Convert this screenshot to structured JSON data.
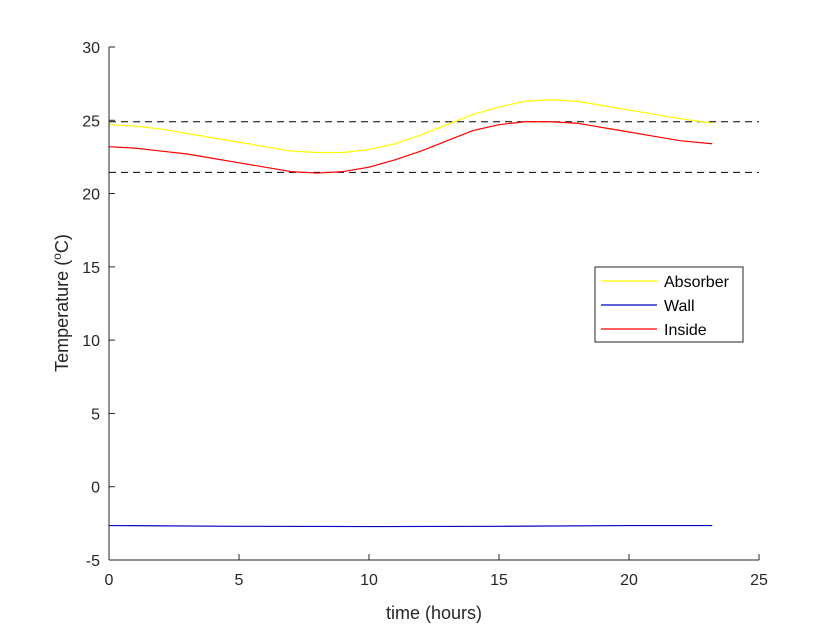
{
  "chart_data": {
    "type": "line",
    "xlabel": "time (hours)",
    "ylabel_main": "Temperature (",
    "ylabel_sup": "o",
    "ylabel_tail": "C)",
    "xlim": [
      0,
      25
    ],
    "ylim": [
      -5,
      30
    ],
    "xticks": [
      0,
      5,
      10,
      15,
      20,
      25
    ],
    "yticks": [
      -5,
      0,
      5,
      10,
      15,
      20,
      25,
      30
    ],
    "grid": false,
    "legend_position": "right-middle",
    "series": [
      {
        "name": "Absorber",
        "color": "#ffff00",
        "x": [
          0,
          1,
          2,
          3,
          4,
          5,
          6,
          7,
          8,
          9,
          10,
          11,
          12,
          13,
          14,
          15,
          16,
          17,
          18,
          19,
          20,
          21,
          22,
          23.2
        ],
        "y": [
          24.7,
          24.6,
          24.4,
          24.1,
          23.8,
          23.5,
          23.2,
          22.9,
          22.8,
          22.8,
          23.0,
          23.4,
          24.0,
          24.7,
          25.4,
          25.9,
          26.3,
          26.4,
          26.3,
          26.0,
          25.7,
          25.4,
          25.1,
          24.8
        ]
      },
      {
        "name": "Wall",
        "color": "#0000cc",
        "x": [
          0,
          5,
          10,
          15,
          20,
          23.2
        ],
        "y": [
          -2.65,
          -2.7,
          -2.72,
          -2.7,
          -2.65,
          -2.65
        ]
      },
      {
        "name": "Inside",
        "color": "#ff0000",
        "x": [
          0,
          1,
          2,
          3,
          4,
          5,
          6,
          7,
          8,
          9,
          10,
          11,
          12,
          13,
          14,
          15,
          16,
          17,
          18,
          19,
          20,
          21,
          22,
          23.2
        ],
        "y": [
          23.2,
          23.1,
          22.9,
          22.7,
          22.4,
          22.1,
          21.8,
          21.5,
          21.4,
          21.5,
          21.8,
          22.3,
          22.9,
          23.6,
          24.3,
          24.7,
          24.9,
          24.9,
          24.8,
          24.5,
          24.2,
          23.9,
          23.6,
          23.4
        ]
      }
    ],
    "reference_lines": [
      {
        "y": 24.9,
        "style": "dashed",
        "color": "#000000"
      },
      {
        "y": 21.45,
        "style": "dashed",
        "color": "#000000"
      }
    ]
  }
}
